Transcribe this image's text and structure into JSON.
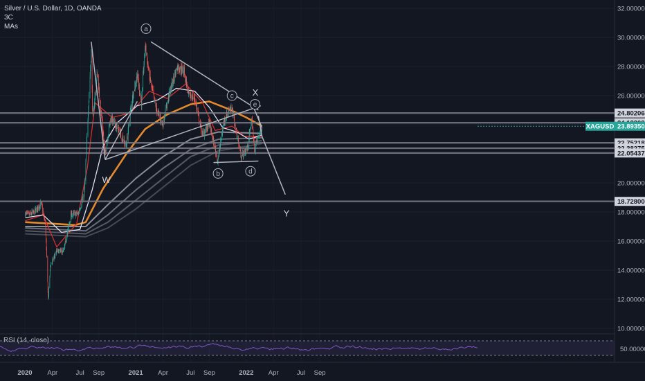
{
  "legend": {
    "symbol": "Silver / U.S. Dollar, 1D, OANDA",
    "line2": "3C",
    "line3": "MAs"
  },
  "rsi": {
    "label": "RSI (14, close)",
    "tick": "50.00000"
  },
  "colors": {
    "background": "#131722",
    "up": "#26a69a",
    "down": "#ef5350",
    "hline": "#787b86",
    "ma_orange": "#e58a2c",
    "ma_red": "#d32f2f",
    "ma_white": "#e0e0f0",
    "ma_gray": "#5d606b",
    "rsi_line": "#7e57c2",
    "current_tag": "#26a69a"
  },
  "chart_data": {
    "type": "candlestick",
    "title": "Silver / U.S. Dollar, 1D, OANDA",
    "y_ticks": [
      "32.00000",
      "30.00000",
      "28.00000",
      "26.00000",
      "24.00000",
      "22.00000",
      "20.00000",
      "18.00000",
      "16.00000",
      "14.00000",
      "12.00000",
      "10.00000"
    ],
    "ylim": [
      10,
      32
    ],
    "x_ticks": [
      "2020",
      "Apr",
      "Jul",
      "Sep",
      "2021",
      "Apr",
      "Jul",
      "Sep",
      "2022",
      "Apr",
      "Jul",
      "Sep"
    ],
    "price_line_labels": [
      "24.80206",
      "24.13309",
      "22.75218",
      "22.38275",
      "22.05437",
      "18.72800"
    ],
    "current": {
      "label": "XAGUSD",
      "price": "23.89350"
    },
    "wave_labels": [
      "W",
      "X",
      "Y"
    ],
    "circle_labels": [
      "a",
      "b",
      "c",
      "d",
      "e"
    ],
    "close_path": [
      [
        "2020-01-02",
        17.9
      ],
      [
        "2020-01-15",
        17.8
      ],
      [
        "2020-02-01",
        18.0
      ],
      [
        "2020-02-24",
        18.6
      ],
      [
        "2020-03-09",
        17.1
      ],
      [
        "2020-03-18",
        12.0
      ],
      [
        "2020-03-25",
        14.3
      ],
      [
        "2020-04-15",
        15.3
      ],
      [
        "2020-05-08",
        15.3
      ],
      [
        "2020-06-01",
        17.8
      ],
      [
        "2020-06-25",
        17.9
      ],
      [
        "2020-07-15",
        19.2
      ],
      [
        "2020-07-27",
        24.5
      ],
      [
        "2020-08-07",
        29.0
      ],
      [
        "2020-08-12",
        24.5
      ],
      [
        "2020-08-27",
        27.5
      ],
      [
        "2020-09-22",
        22.0
      ],
      [
        "2020-10-10",
        24.5
      ],
      [
        "2020-11-09",
        23.5
      ],
      [
        "2020-11-30",
        22.5
      ],
      [
        "2020-12-20",
        25.8
      ],
      [
        "2021-01-06",
        27.4
      ],
      [
        "2021-01-20",
        25.5
      ],
      [
        "2021-02-01",
        29.5
      ],
      [
        "2021-02-15",
        27.4
      ],
      [
        "2021-03-08",
        25.2
      ],
      [
        "2021-03-31",
        24.0
      ],
      [
        "2021-04-20",
        26.0
      ],
      [
        "2021-05-18",
        28.0
      ],
      [
        "2021-06-10",
        27.7
      ],
      [
        "2021-06-25",
        26.0
      ],
      [
        "2021-07-15",
        25.8
      ],
      [
        "2021-08-09",
        23.3
      ],
      [
        "2021-09-01",
        24.1
      ],
      [
        "2021-09-29",
        21.5
      ],
      [
        "2021-10-20",
        24.3
      ],
      [
        "2021-11-12",
        25.3
      ],
      [
        "2021-12-15",
        21.8
      ],
      [
        "2022-01-05",
        22.4
      ],
      [
        "2022-01-19",
        24.4
      ],
      [
        "2022-01-28",
        22.3
      ],
      [
        "2022-02-10",
        23.2
      ],
      [
        "2022-02-22",
        23.89
      ]
    ],
    "series": [
      {
        "name": "MA fast (red)",
        "points": [
          [
            "2020-01-02",
            17.4
          ],
          [
            "2020-03-01",
            17.8
          ],
          [
            "2020-04-15",
            15.6
          ],
          [
            "2020-06-20",
            17.2
          ],
          [
            "2020-07-25",
            21.0
          ],
          [
            "2020-08-20",
            25.5
          ],
          [
            "2020-10-15",
            24.5
          ],
          [
            "2020-12-15",
            24.8
          ],
          [
            "2021-02-15",
            26.3
          ],
          [
            "2021-04-15",
            25.8
          ],
          [
            "2021-06-15",
            26.8
          ],
          [
            "2021-08-10",
            25.5
          ],
          [
            "2021-09-20",
            23.6
          ],
          [
            "2021-11-15",
            23.9
          ],
          [
            "2021-12-25",
            23.2
          ],
          [
            "2022-02-22",
            23.2
          ]
        ]
      },
      {
        "name": "MA medium (white)",
        "points": [
          [
            "2020-01-02",
            17.6
          ],
          [
            "2020-03-01",
            17.8
          ],
          [
            "2020-05-01",
            16.6
          ],
          [
            "2020-07-01",
            16.8
          ],
          [
            "2020-08-10",
            19.5
          ],
          [
            "2020-09-15",
            22.5
          ],
          [
            "2020-10-30",
            24.1
          ],
          [
            "2021-01-05",
            25.3
          ],
          [
            "2021-03-15",
            25.7
          ],
          [
            "2021-05-15",
            26.5
          ],
          [
            "2021-07-15",
            26.3
          ],
          [
            "2021-09-01",
            25.2
          ],
          [
            "2021-10-15",
            23.8
          ],
          [
            "2021-12-01",
            23.5
          ],
          [
            "2022-01-10",
            23.0
          ],
          [
            "2022-02-22",
            23.3
          ]
        ]
      },
      {
        "name": "MA 200 (orange)",
        "points": [
          [
            "2020-01-02",
            17.3
          ],
          [
            "2020-04-01",
            17.2
          ],
          [
            "2020-06-15",
            17.1
          ],
          [
            "2020-07-20",
            17.3
          ],
          [
            "2020-09-15",
            19.6
          ],
          [
            "2020-12-01",
            22.0
          ],
          [
            "2021-02-01",
            23.7
          ],
          [
            "2021-04-15",
            24.7
          ],
          [
            "2021-07-01",
            25.4
          ],
          [
            "2021-09-01",
            25.6
          ],
          [
            "2021-11-01",
            25.1
          ],
          [
            "2022-01-01",
            24.5
          ],
          [
            "2022-02-22",
            23.9
          ]
        ]
      },
      {
        "name": "MA slow 1",
        "points": [
          [
            "2020-01-02",
            17.0
          ],
          [
            "2020-07-20",
            17.0
          ],
          [
            "2020-10-01",
            18.5
          ],
          [
            "2021-01-01",
            20.3
          ],
          [
            "2021-04-01",
            21.8
          ],
          [
            "2021-07-01",
            23.0
          ],
          [
            "2021-10-01",
            23.5
          ],
          [
            "2022-02-22",
            23.4
          ]
        ]
      },
      {
        "name": "MA slow 2",
        "points": [
          [
            "2020-01-02",
            16.9
          ],
          [
            "2020-07-20",
            16.7
          ],
          [
            "2020-10-01",
            17.8
          ],
          [
            "2021-01-01",
            19.5
          ],
          [
            "2021-04-01",
            21.0
          ],
          [
            "2021-07-01",
            22.3
          ],
          [
            "2021-10-01",
            23.0
          ],
          [
            "2022-02-22",
            23.1
          ]
        ]
      },
      {
        "name": "MA slow 3",
        "points": [
          [
            "2020-01-02",
            16.7
          ],
          [
            "2020-07-20",
            16.5
          ],
          [
            "2020-10-01",
            17.3
          ],
          [
            "2021-01-01",
            18.8
          ],
          [
            "2021-04-01",
            20.3
          ],
          [
            "2021-07-01",
            21.8
          ],
          [
            "2021-10-01",
            22.6
          ],
          [
            "2022-02-22",
            22.9
          ]
        ]
      },
      {
        "name": "MA slow 4",
        "points": [
          [
            "2020-01-02",
            16.5
          ],
          [
            "2020-07-20",
            16.3
          ],
          [
            "2020-10-01",
            16.9
          ],
          [
            "2021-01-01",
            18.2
          ],
          [
            "2021-04-01",
            19.7
          ],
          [
            "2021-07-01",
            21.2
          ],
          [
            "2021-10-01",
            22.2
          ],
          [
            "2022-02-22",
            22.7
          ]
        ]
      }
    ]
  }
}
